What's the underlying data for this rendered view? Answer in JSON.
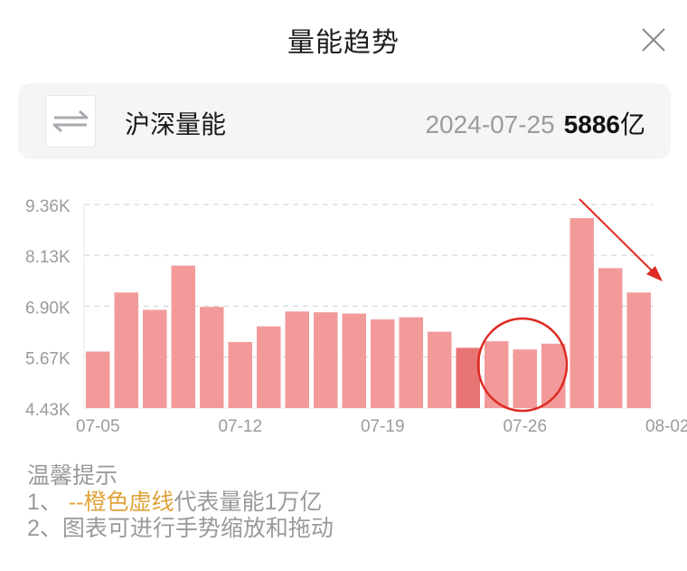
{
  "header": {
    "title": "量能趋势",
    "close_icon": "close-icon"
  },
  "card": {
    "swap_icon": "swap-arrows-icon",
    "name": "沪深量能",
    "date": "2024-07-25",
    "value": "5886",
    "unit": "亿"
  },
  "chart_data": {
    "type": "bar",
    "title": "",
    "xlabel": "",
    "ylabel": "",
    "ylim": [
      4.43,
      9.36
    ],
    "y_ticks": [
      "9.36K",
      "8.13K",
      "6.90K",
      "5.67K",
      "4.43K"
    ],
    "y_tick_values": [
      9.36,
      8.13,
      6.9,
      5.67,
      4.43
    ],
    "x_ticks": [
      "07-05",
      "07-12",
      "07-19",
      "07-26",
      "08-02"
    ],
    "x_tick_indices": [
      0,
      5,
      10,
      15,
      20
    ],
    "values": [
      5.8,
      7.23,
      6.81,
      7.88,
      6.88,
      6.03,
      6.41,
      6.77,
      6.75,
      6.72,
      6.58,
      6.63,
      6.28,
      5.89,
      6.05,
      5.85,
      5.99,
      9.03,
      7.82,
      7.23
    ],
    "highlight_index": 13,
    "grid": true,
    "colors": {
      "bar": "#f29a9a",
      "highlight": "#e87474",
      "grid": "#cfcfcf",
      "axis": "#e8e8e8",
      "tick": "#9b9b9b"
    }
  },
  "annotations": {
    "circle_color": "#dd2a22",
    "arrow_color": "#dd2a22"
  },
  "tips": {
    "title": "温馨提示",
    "line1_prefix": "1、 ",
    "line1_highlight": "--橙色虚线",
    "line1_suffix": "代表量能1万亿",
    "line2": "2、图表可进行手势缩放和拖动"
  }
}
